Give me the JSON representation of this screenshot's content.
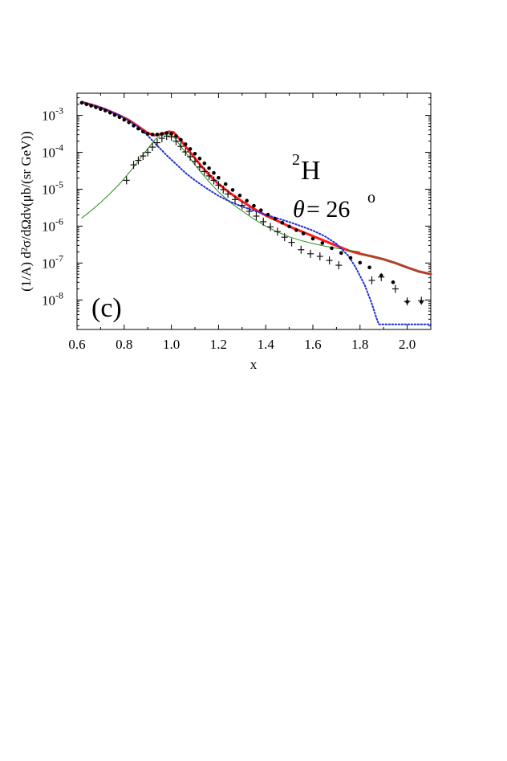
{
  "chart_data": {
    "type": "line",
    "xlabel": "x",
    "ylabel": "(1/A) d²σ/dΩdν(μb/(sr GeV))",
    "panel_label": "(c)",
    "nucleus": {
      "mass": "2",
      "symbol": "H"
    },
    "angle": {
      "symbol": "θ",
      "eq": "= 26",
      "unit": "o"
    },
    "xlim": [
      0.6,
      2.1
    ],
    "ylim_log10": [
      -8.8,
      -2.4
    ],
    "yscale": "log",
    "x_ticks": [
      0.6,
      0.8,
      1.0,
      1.2,
      1.4,
      1.6,
      1.8,
      2.0
    ],
    "x_tick_labels": [
      "0.6",
      "0.8",
      "1.0",
      "1.2",
      "1.4",
      "1.6",
      "1.8",
      "2.0"
    ],
    "y_tick_exponents": [
      -3,
      -4,
      -5,
      -6,
      -7,
      -8
    ],
    "y_tick_base": "10",
    "series": [
      {
        "style": "thick-solid",
        "color": "#ff1a1a",
        "x": [
          0.62,
          0.66,
          0.7,
          0.74,
          0.78,
          0.82,
          0.86,
          0.9,
          0.93,
          0.96,
          0.99,
          1.01,
          1.04,
          1.08,
          1.12,
          1.16,
          1.2,
          1.25,
          1.3,
          1.35,
          1.4,
          1.45,
          1.5,
          1.55,
          1.6,
          1.65,
          1.7,
          1.75,
          1.8
        ],
        "log10y": [
          -2.64,
          -2.71,
          -2.79,
          -2.89,
          -3.0,
          -3.13,
          -3.3,
          -3.48,
          -3.54,
          -3.5,
          -3.44,
          -3.46,
          -3.68,
          -4.0,
          -4.32,
          -4.61,
          -4.86,
          -5.11,
          -5.33,
          -5.53,
          -5.71,
          -5.86,
          -6.01,
          -6.14,
          -6.27,
          -6.4,
          -6.53,
          -6.66,
          -6.75
        ]
      },
      {
        "style": "thick-solid",
        "color": "#b0402a",
        "x": [
          1.8,
          1.85,
          1.9,
          1.95,
          2.0,
          2.05,
          2.1
        ],
        "log10y": [
          -6.75,
          -6.82,
          -6.9,
          -7.0,
          -7.12,
          -7.23,
          -7.3
        ]
      },
      {
        "style": "thin-solid",
        "color": "#2c8a1e",
        "x": [
          0.62,
          0.66,
          0.7,
          0.74,
          0.78,
          0.82,
          0.86,
          0.9,
          0.93,
          0.96,
          0.99,
          1.01,
          1.04,
          1.08,
          1.12,
          1.16,
          1.2,
          1.25,
          1.3,
          1.35,
          1.4,
          1.45,
          1.5,
          1.55,
          1.6,
          1.65,
          1.7,
          1.75,
          1.8
        ],
        "log10y": [
          -5.78,
          -5.58,
          -5.36,
          -5.12,
          -4.86,
          -4.56,
          -4.24,
          -3.9,
          -3.66,
          -3.52,
          -3.5,
          -3.58,
          -3.84,
          -4.17,
          -4.5,
          -4.8,
          -5.07,
          -5.36,
          -5.59,
          -5.81,
          -6.0,
          -6.16,
          -6.29,
          -6.39,
          -6.47,
          -6.54,
          -6.6,
          -6.65,
          -6.7
        ]
      },
      {
        "style": "dotted",
        "color": "#1f2fd6",
        "x": [
          0.62,
          0.66,
          0.7,
          0.74,
          0.78,
          0.82,
          0.86,
          0.9,
          0.94,
          0.98,
          1.02,
          1.06,
          1.1,
          1.15,
          1.2,
          1.25,
          1.3,
          1.35,
          1.4,
          1.45,
          1.5,
          1.55,
          1.6,
          1.65,
          1.7,
          1.75,
          1.78,
          1.82,
          1.85,
          1.87,
          1.88,
          2.1
        ],
        "log10y": [
          -2.64,
          -2.71,
          -2.79,
          -2.89,
          -3.0,
          -3.14,
          -3.32,
          -3.55,
          -3.82,
          -4.08,
          -4.32,
          -4.56,
          -4.76,
          -4.98,
          -5.18,
          -5.34,
          -5.47,
          -5.58,
          -5.69,
          -5.79,
          -5.89,
          -6.0,
          -6.12,
          -6.27,
          -6.48,
          -6.8,
          -7.1,
          -7.6,
          -8.1,
          -8.5,
          -8.66,
          -8.66
        ]
      }
    ],
    "points_dot": {
      "x": [
        0.62,
        0.64,
        0.66,
        0.68,
        0.7,
        0.72,
        0.74,
        0.76,
        0.78,
        0.8,
        0.82,
        0.84,
        0.86,
        0.88,
        0.9,
        0.92,
        0.94,
        0.96,
        0.98,
        1.0,
        1.02,
        1.04,
        1.06,
        1.08,
        1.1,
        1.12,
        1.14,
        1.16,
        1.18,
        1.2,
        1.23,
        1.26,
        1.29,
        1.32,
        1.35,
        1.38,
        1.41,
        1.44,
        1.47,
        1.5,
        1.53,
        1.56,
        1.6,
        1.64,
        1.68,
        1.72,
        1.76,
        1.8,
        1.84,
        1.89,
        1.94,
        2.0,
        2.06
      ],
      "log10y": [
        -2.66,
        -2.7,
        -2.74,
        -2.78,
        -2.83,
        -2.87,
        -2.93,
        -2.99,
        -3.05,
        -3.12,
        -3.19,
        -3.28,
        -3.36,
        -3.44,
        -3.5,
        -3.52,
        -3.52,
        -3.5,
        -3.48,
        -3.5,
        -3.56,
        -3.66,
        -3.78,
        -3.91,
        -4.04,
        -4.17,
        -4.3,
        -4.43,
        -4.56,
        -4.69,
        -4.86,
        -5.02,
        -5.17,
        -5.31,
        -5.45,
        -5.57,
        -5.69,
        -5.8,
        -5.91,
        -6.01,
        -6.11,
        -6.2,
        -6.34,
        -6.46,
        -6.6,
        -6.73,
        -6.86,
        -6.99,
        -7.12,
        -7.34,
        -7.52,
        -8.05,
        -8.05
      ]
    },
    "points_cross": {
      "x": [
        0.81,
        0.84,
        0.86,
        0.88,
        0.9,
        0.92,
        0.94,
        0.96,
        0.98,
        1.0,
        1.02,
        1.04,
        1.06,
        1.08,
        1.1,
        1.12,
        1.14,
        1.16,
        1.18,
        1.2,
        1.22,
        1.24,
        1.27,
        1.3,
        1.33,
        1.36,
        1.39,
        1.42,
        1.45,
        1.48,
        1.51,
        1.55,
        1.59,
        1.63,
        1.67,
        1.71,
        1.85,
        1.89,
        1.95,
        2.0,
        2.06
      ],
      "log10y": [
        -4.76,
        -4.34,
        -4.22,
        -4.1,
        -4.0,
        -3.86,
        -3.74,
        -3.62,
        -3.56,
        -3.58,
        -3.7,
        -3.84,
        -3.99,
        -4.12,
        -4.25,
        -4.4,
        -4.52,
        -4.64,
        -4.76,
        -4.89,
        -5.01,
        -5.13,
        -5.28,
        -5.44,
        -5.6,
        -5.73,
        -5.88,
        -6.02,
        -6.15,
        -6.3,
        -6.44,
        -6.64,
        -6.75,
        -6.82,
        -6.93,
        -7.06,
        -7.47,
        -7.38,
        -7.7,
        -8.04,
        -8.02
      ]
    }
  }
}
